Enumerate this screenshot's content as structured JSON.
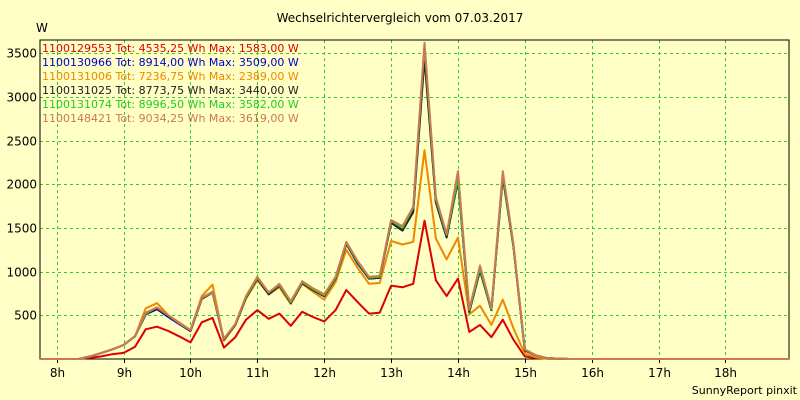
{
  "chart_data": {
    "type": "line",
    "title": "Wechselrichtervergleich vom 07.03.2017",
    "ylabel": "W",
    "xlabel": "",
    "footer": "SunnyReport pinxit",
    "grid": true,
    "xlim": [
      7.75,
      18.95
    ],
    "ylim": [
      0,
      3650
    ],
    "x_ticks": [
      {
        "value": 8,
        "label": "8h"
      },
      {
        "value": 9,
        "label": "9h"
      },
      {
        "value": 10,
        "label": "10h"
      },
      {
        "value": 11,
        "label": "11h"
      },
      {
        "value": 12,
        "label": "12h"
      },
      {
        "value": 13,
        "label": "13h"
      },
      {
        "value": 14,
        "label": "14h"
      },
      {
        "value": 15,
        "label": "15h"
      },
      {
        "value": 16,
        "label": "16h"
      },
      {
        "value": 17,
        "label": "17h"
      },
      {
        "value": 18,
        "label": "18h"
      }
    ],
    "y_ticks": [
      500,
      1000,
      1500,
      2000,
      2500,
      3000,
      3500
    ],
    "x": [
      7.75,
      8.0,
      8.17,
      8.33,
      8.5,
      8.67,
      8.83,
      9.0,
      9.17,
      9.33,
      9.5,
      9.67,
      9.83,
      10.0,
      10.17,
      10.33,
      10.5,
      10.67,
      10.83,
      11.0,
      11.17,
      11.33,
      11.5,
      11.67,
      11.83,
      12.0,
      12.17,
      12.33,
      12.5,
      12.67,
      12.83,
      13.0,
      13.17,
      13.33,
      13.5,
      13.67,
      13.83,
      14.0,
      14.17,
      14.33,
      14.5,
      14.67,
      14.83,
      15.0,
      15.17,
      15.33,
      15.5,
      15.67,
      15.83,
      16.0,
      16.17,
      16.33,
      16.5,
      16.67,
      16.83,
      17.0,
      17.17,
      17.33,
      17.5,
      17.67,
      17.83,
      18.0,
      18.17,
      18.33,
      18.5,
      18.67,
      18.83,
      18.95
    ],
    "series": [
      {
        "name": "1100129553",
        "legend": "1100129553 Tot: 4535,25 Wh Max: 1583,00 W",
        "color": "#dd0000",
        "values": [
          0,
          0,
          0,
          0,
          15,
          30,
          55,
          70,
          140,
          340,
          370,
          320,
          260,
          190,
          420,
          470,
          130,
          250,
          450,
          560,
          460,
          520,
          380,
          540,
          480,
          430,
          560,
          790,
          650,
          520,
          530,
          840,
          820,
          860,
          1583,
          900,
          720,
          920,
          310,
          390,
          250,
          450,
          220,
          30,
          10,
          5,
          0,
          0,
          0,
          0,
          0,
          0,
          0,
          0,
          0,
          0,
          0,
          0,
          0,
          0,
          0,
          0,
          0,
          0,
          0,
          0,
          0,
          0
        ]
      },
      {
        "name": "1100130966",
        "legend": "1100130966 Tot: 8914,00 Wh Max: 3509,00 W",
        "color": "#0000cc",
        "values": [
          0,
          0,
          0,
          0,
          30,
          70,
          110,
          160,
          260,
          510,
          570,
          480,
          400,
          320,
          690,
          760,
          220,
          390,
          700,
          920,
          740,
          840,
          640,
          870,
          790,
          720,
          920,
          1320,
          1090,
          920,
          930,
          1560,
          1470,
          1700,
          3509,
          1800,
          1400,
          2050,
          540,
          1020,
          560,
          2100,
          1290,
          100,
          40,
          10,
          5,
          0,
          0,
          0,
          0,
          0,
          0,
          0,
          0,
          0,
          0,
          0,
          0,
          0,
          0,
          0,
          0,
          0,
          0,
          0,
          0,
          0
        ]
      },
      {
        "name": "1100131006",
        "legend": "1100131006 Tot: 7236,75 Wh Max: 2389,00 W",
        "color": "#ee8800",
        "values": [
          0,
          0,
          0,
          0,
          30,
          70,
          110,
          160,
          260,
          580,
          640,
          500,
          420,
          330,
          720,
          850,
          210,
          390,
          690,
          900,
          740,
          820,
          630,
          860,
          770,
          680,
          880,
          1250,
          1040,
          860,
          870,
          1350,
          1310,
          1340,
          2389,
          1380,
          1140,
          1390,
          510,
          610,
          390,
          680,
          350,
          60,
          20,
          5,
          0,
          0,
          0,
          0,
          0,
          0,
          0,
          0,
          0,
          0,
          0,
          0,
          0,
          0,
          0,
          0,
          0,
          0,
          0,
          0,
          0,
          0
        ]
      },
      {
        "name": "1100131025",
        "legend": "1100131025 Tot: 8773,75 Wh Max: 3440,00 W",
        "color": "#222222",
        "values": [
          0,
          0,
          0,
          0,
          30,
          70,
          110,
          160,
          260,
          510,
          580,
          490,
          410,
          320,
          690,
          760,
          220,
          390,
          700,
          920,
          740,
          840,
          640,
          870,
          790,
          720,
          920,
          1320,
          1100,
          920,
          930,
          1560,
          1470,
          1680,
          3440,
          1790,
          1390,
          2040,
          540,
          1010,
          560,
          2080,
          1280,
          100,
          40,
          10,
          5,
          0,
          0,
          0,
          0,
          0,
          0,
          0,
          0,
          0,
          0,
          0,
          0,
          0,
          0,
          0,
          0,
          0,
          0,
          0,
          0,
          0
        ]
      },
      {
        "name": "1100131074",
        "legend": "1100131074 Tot: 8996,50 Wh Max: 3582,00 W",
        "color": "#22cc22",
        "values": [
          0,
          0,
          0,
          0,
          30,
          70,
          110,
          160,
          260,
          520,
          590,
          500,
          410,
          330,
          700,
          760,
          230,
          400,
          710,
          930,
          760,
          850,
          650,
          880,
          800,
          730,
          930,
          1330,
          1110,
          930,
          940,
          1580,
          1500,
          1730,
          3582,
          1830,
          1420,
          2070,
          560,
          1040,
          570,
          2120,
          1300,
          110,
          40,
          10,
          5,
          0,
          0,
          0,
          0,
          0,
          0,
          0,
          0,
          0,
          0,
          0,
          0,
          0,
          0,
          0,
          0,
          0,
          0,
          0,
          0,
          0
        ]
      },
      {
        "name": "1100148421",
        "legend": "1100148421 Tot: 9034,25 Wh Max: 3619,00 W",
        "color": "#cc7755",
        "values": [
          0,
          0,
          0,
          0,
          30,
          70,
          110,
          160,
          260,
          530,
          590,
          500,
          410,
          330,
          700,
          770,
          230,
          400,
          720,
          940,
          760,
          860,
          660,
          890,
          810,
          740,
          940,
          1340,
          1120,
          940,
          950,
          1590,
          1520,
          1740,
          3619,
          1850,
          1430,
          2150,
          570,
          1070,
          580,
          2150,
          1310,
          110,
          40,
          10,
          5,
          0,
          0,
          0,
          0,
          0,
          0,
          0,
          0,
          0,
          0,
          0,
          0,
          0,
          0,
          0,
          0,
          0,
          0,
          0,
          0,
          0
        ]
      }
    ]
  }
}
